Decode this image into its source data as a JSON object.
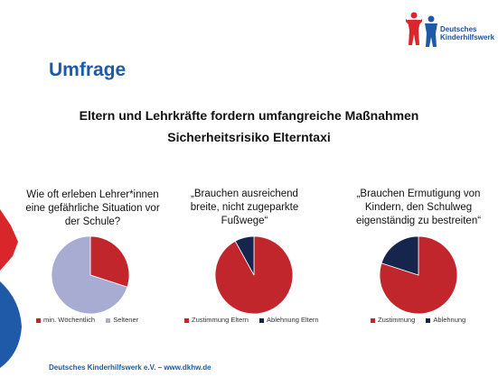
{
  "logo": {
    "line1": "Deutsches",
    "line2": "Kinderhilfswerk"
  },
  "heading": "Umfrage",
  "subtitle_line1": "Eltern und Lehrkräfte fordern umfangreiche Maßnahmen",
  "subtitle_line2": "Sicherheitsrisiko Elterntaxi",
  "footer": "Deutsches Kinderhilfswerk e.V.  –  www.dkhw.de",
  "colors": {
    "red": "#c0262c",
    "lavender": "#a8acd3",
    "navy": "#16254d",
    "brand_blue": "#1e5aa8"
  },
  "chart_data": [
    {
      "type": "pie",
      "title": [
        "Wie oft erleben Lehrer*innen",
        "eine gefährliche Situation vor",
        "der Schule?"
      ],
      "categories": [
        "min. Wöchentlich",
        "Seltener"
      ],
      "values": [
        30,
        70
      ],
      "colors": [
        "#c0262c",
        "#a8acd3"
      ]
    },
    {
      "type": "pie",
      "title": [
        "„Brauchen ausreichend",
        "breite, nicht zugeparkte",
        "Fußwege“"
      ],
      "categories": [
        "Zustimmung Eltern",
        "Ablehnung Eltern"
      ],
      "values": [
        92,
        8
      ],
      "colors": [
        "#c0262c",
        "#16254d"
      ]
    },
    {
      "type": "pie",
      "title": [
        "„Brauchen Ermutigung von",
        "Kindern, den Schulweg",
        "eigenständig zu bestreiten“"
      ],
      "categories": [
        "Zustimmung",
        "Ablehnung"
      ],
      "values": [
        80,
        20
      ],
      "colors": [
        "#c0262c",
        "#16254d"
      ]
    }
  ]
}
